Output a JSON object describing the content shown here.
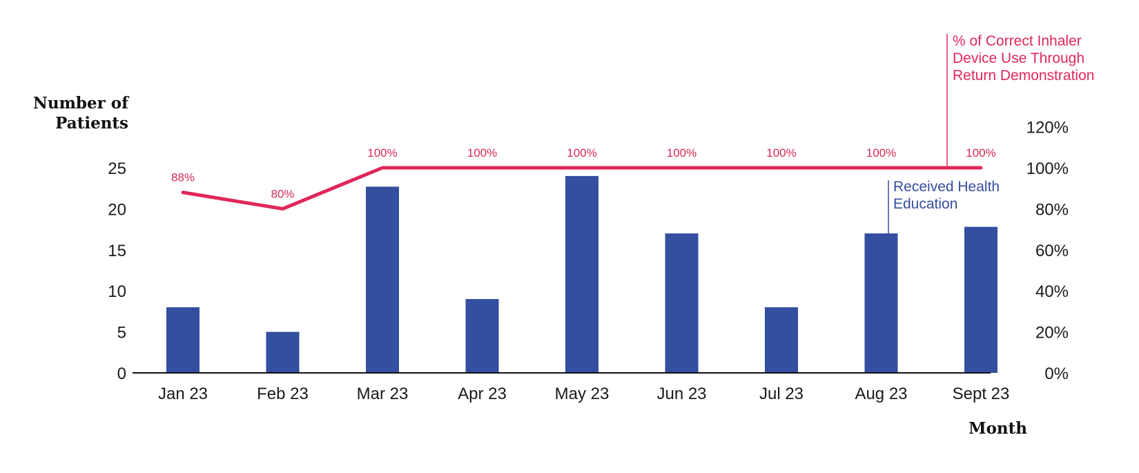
{
  "chart_data": {
    "type": "bar+line",
    "categories": [
      "Jan 23",
      "Feb 23",
      "Mar 23",
      "Apr 23",
      "May 23",
      "Jun 23",
      "Jul 23",
      "Aug 23",
      "Sept 23"
    ],
    "series": [
      {
        "name": "Received Health Education",
        "type": "bar",
        "axis": "left",
        "color": "#344ea0",
        "values": [
          8,
          5,
          22.7,
          9,
          24,
          17,
          8,
          17,
          17.8
        ]
      },
      {
        "name": "% of Correct Inhaler Device Use Through Return Demonstration",
        "type": "line",
        "axis": "right",
        "color": "#e0275a",
        "values": [
          88,
          80,
          100,
          100,
          100,
          100,
          100,
          100,
          100
        ],
        "labels": [
          "88%",
          "80%",
          "100%",
          "100%",
          "100%",
          "100%",
          "100%",
          "100%",
          "100%"
        ]
      }
    ],
    "ylabel_left": [
      "Number of",
      "Patients"
    ],
    "ylabel_right": "",
    "xlabel": "Month",
    "ylim_left": [
      0,
      25
    ],
    "yticks_left": [
      "0",
      "5",
      "10",
      "15",
      "20",
      "25"
    ],
    "ylim_right": [
      0,
      100
    ],
    "yticks_right": [
      "0%",
      "20%",
      "40%",
      "60%",
      "80%",
      "100%",
      "120%"
    ],
    "legend_bar": [
      "Received Health",
      "Education"
    ],
    "legend_line": [
      "% of Correct Inhaler",
      "Device Use Through",
      "Return Demonstration"
    ],
    "grid": false
  }
}
